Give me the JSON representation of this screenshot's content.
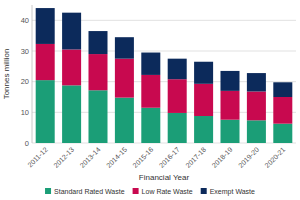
{
  "chart_data": {
    "type": "bar",
    "stacked": true,
    "grid": true,
    "legend": "bottom",
    "x_label": "Financial Year",
    "y_label": "Tonnes million",
    "categories": [
      "2011-12",
      "2012-13",
      "2013-14",
      "2014-15",
      "2015-16",
      "2016-17",
      "2017-18",
      "2018-19",
      "2019-20",
      "2020-21"
    ],
    "series": [
      {
        "name": "Standard Rated Waste",
        "color": "#1b9e77",
        "values": [
          20.5,
          18.8,
          17.2,
          14.8,
          11.5,
          9.8,
          8.8,
          7.6,
          7.4,
          6.3
        ]
      },
      {
        "name": "Low Rate Waste",
        "color": "#c8094f",
        "values": [
          11.8,
          11.7,
          11.8,
          12.7,
          10.7,
          11.0,
          10.5,
          9.4,
          9.4,
          8.7
        ]
      },
      {
        "name": "Exempt Waste",
        "color": "#0c2a5b",
        "values": [
          11.7,
          12.0,
          7.5,
          7.0,
          7.3,
          6.7,
          7.2,
          6.5,
          6.0,
          4.8
        ]
      }
    ],
    "ylim": [
      0,
      45
    ],
    "yticks": [
      0,
      10,
      20,
      30,
      40
    ]
  }
}
